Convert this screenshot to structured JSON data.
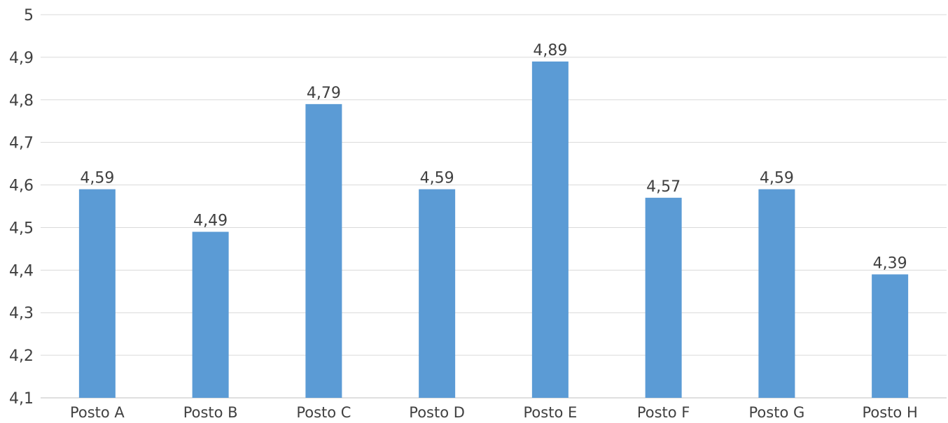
{
  "chart_data": {
    "type": "bar",
    "title": "",
    "xlabel": "",
    "ylabel": "",
    "categories": [
      "Posto A",
      "Posto B",
      "Posto C",
      "Posto D",
      "Posto E",
      "Posto F",
      "Posto G",
      "Posto H"
    ],
    "values": [
      4.59,
      4.49,
      4.79,
      4.59,
      4.89,
      4.57,
      4.59,
      4.39
    ],
    "data_labels": [
      "4,59",
      "4,49",
      "4,79",
      "4,59",
      "4,89",
      "4,57",
      "4,59",
      "4,39"
    ],
    "ylim": [
      4.1,
      5.0
    ],
    "yticks": [
      4.1,
      4.2,
      4.3,
      4.4,
      4.5,
      4.6,
      4.7,
      4.8,
      4.9,
      5.0
    ],
    "ytick_labels": [
      "4,1",
      "4,2",
      "4,3",
      "4,4",
      "4,5",
      "4,6",
      "4,7",
      "4,8",
      "4,9",
      "5"
    ],
    "grid": true,
    "legend": "none",
    "bar_color": "#5b9bd5"
  }
}
